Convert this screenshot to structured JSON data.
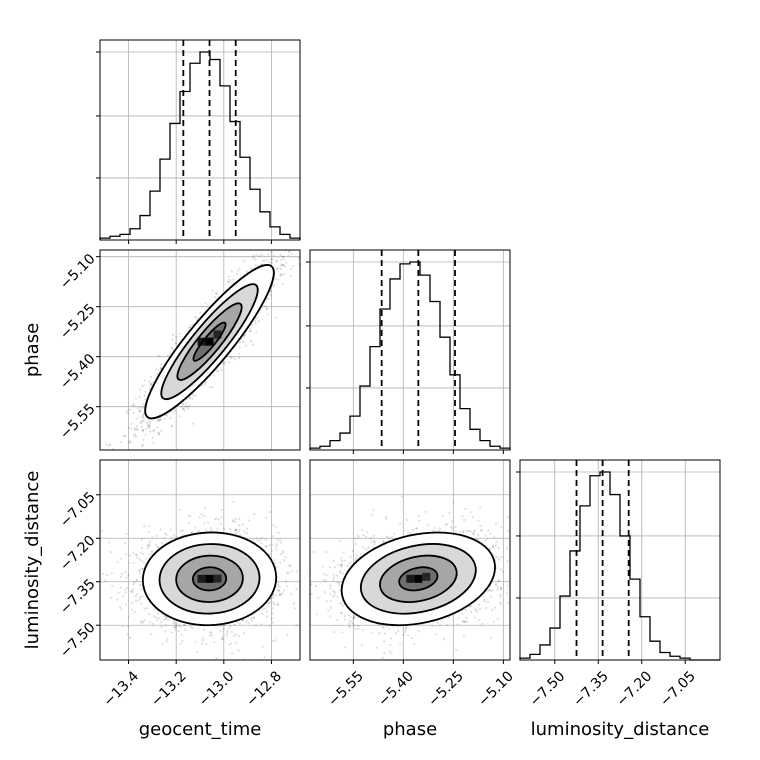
{
  "chart_data": {
    "type": "corner",
    "parameters": [
      "geocent_time",
      "phase",
      "luminosity_distance"
    ],
    "axis_labels": {
      "geocent_time": "geocent_time",
      "phase": "phase",
      "luminosity_distance": "luminosity_distance"
    },
    "ranges": {
      "geocent_time": [
        -13.52,
        -12.68
      ],
      "phase": [
        -5.68,
        -5.08
      ],
      "luminosity_distance": [
        -7.62,
        -6.93
      ]
    },
    "ticks": {
      "geocent_time": [
        {
          "v": -13.4,
          "label": "−13.4"
        },
        {
          "v": -13.2,
          "label": "−13.2"
        },
        {
          "v": -13.0,
          "label": "−13.0"
        },
        {
          "v": -12.8,
          "label": "−12.8"
        }
      ],
      "phase": [
        {
          "v": -5.55,
          "label": "−5.55"
        },
        {
          "v": -5.4,
          "label": "−5.40"
        },
        {
          "v": -5.25,
          "label": "−5.25"
        },
        {
          "v": -5.1,
          "label": "−5.10"
        }
      ],
      "luminosity_distance": [
        {
          "v": -7.5,
          "label": "−7.50"
        },
        {
          "v": -7.35,
          "label": "−7.35"
        },
        {
          "v": -7.2,
          "label": "−7.20"
        },
        {
          "v": -7.05,
          "label": "−7.05"
        }
      ]
    },
    "histograms": {
      "geocent_time": {
        "edges": [
          -13.52,
          -13.478,
          -13.436,
          -13.394,
          -13.352,
          -13.31,
          -13.268,
          -13.226,
          -13.184,
          -13.142,
          -13.1,
          -13.058,
          -13.016,
          -12.974,
          -12.932,
          -12.89,
          -12.848,
          -12.806,
          -12.764,
          -12.722,
          -12.68
        ],
        "counts": [
          1,
          2,
          3,
          6,
          13,
          26,
          43,
          62,
          79,
          94,
          100,
          96,
          82,
          63,
          44,
          27,
          15,
          7,
          3,
          1
        ],
        "quantiles": [
          -13.17,
          -13.06,
          -12.95
        ]
      },
      "phase": {
        "edges": [
          -5.68,
          -5.65,
          -5.62,
          -5.59,
          -5.56,
          -5.53,
          -5.5,
          -5.47,
          -5.44,
          -5.41,
          -5.38,
          -5.35,
          -5.32,
          -5.29,
          -5.26,
          -5.23,
          -5.2,
          -5.17,
          -5.14,
          -5.11,
          -5.08
        ],
        "counts": [
          1,
          2,
          5,
          9,
          18,
          34,
          55,
          75,
          91,
          99,
          100,
          93,
          79,
          60,
          40,
          22,
          11,
          5,
          2,
          1
        ],
        "quantiles": [
          -5.465,
          -5.355,
          -5.245
        ]
      },
      "luminosity_distance": {
        "edges": [
          -7.62,
          -7.5855,
          -7.551,
          -7.5165,
          -7.482,
          -7.4475,
          -7.413,
          -7.3785,
          -7.344,
          -7.3095,
          -7.275,
          -7.2405,
          -7.206,
          -7.1715,
          -7.137,
          -7.1025,
          -7.068,
          -7.0335,
          -6.999,
          -6.9645,
          -6.93
        ],
        "counts": [
          1,
          3,
          8,
          17,
          34,
          58,
          82,
          98,
          100,
          88,
          66,
          43,
          23,
          10,
          4,
          2,
          1,
          0,
          0,
          0
        ],
        "quantiles": [
          -7.425,
          -7.335,
          -7.245
        ]
      }
    },
    "pairs": [
      {
        "x": "geocent_time",
        "y": "phase",
        "mean": [
          -13.06,
          -5.355
        ],
        "std": [
          0.135,
          0.115
        ],
        "rho": 0.9,
        "n": 2500
      },
      {
        "x": "geocent_time",
        "y": "luminosity_distance",
        "mean": [
          -13.06,
          -7.34
        ],
        "std": [
          0.14,
          0.08
        ],
        "rho": 0.03,
        "n": 2500
      },
      {
        "x": "phase",
        "y": "luminosity_distance",
        "mean": [
          -5.355,
          -7.34
        ],
        "std": [
          0.115,
          0.08
        ],
        "rho": 0.25,
        "n": 2500
      }
    ],
    "contour_levels_sigma": [
      0.5,
      1.0,
      1.5,
      2.0
    ],
    "grid": true
  }
}
